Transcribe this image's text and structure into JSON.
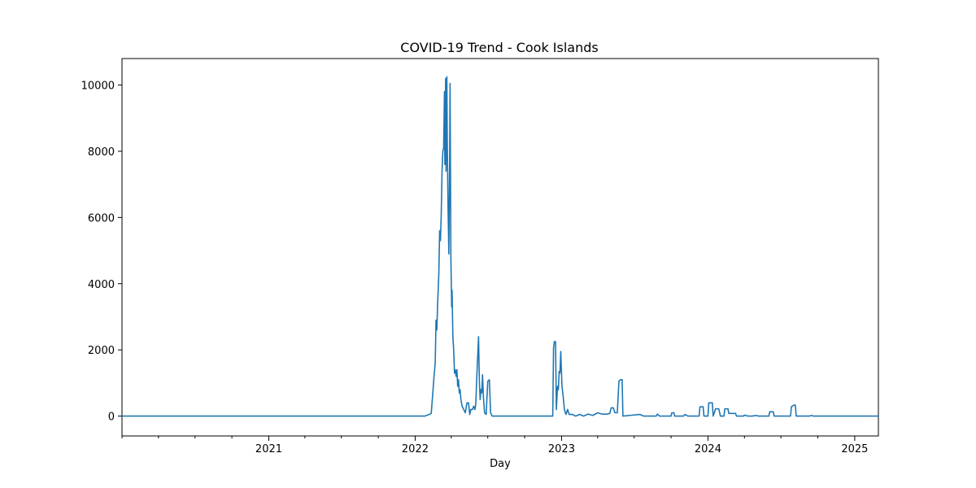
{
  "chart_data": {
    "type": "line",
    "title": "COVID-19 Trend - Cook Islands",
    "xlabel": "Day",
    "ylabel": "",
    "x_range": [
      "2020-01-01",
      "2025-03-01"
    ],
    "ylim": [
      -600,
      10800
    ],
    "grid": false,
    "legend": "none",
    "colors": {
      "series": "#1f77b4",
      "axis": "#000000",
      "background": "#ffffff"
    },
    "x_ticks": [
      {
        "date": "2021-01-01",
        "label": "2021"
      },
      {
        "date": "2022-01-01",
        "label": "2022"
      },
      {
        "date": "2023-01-01",
        "label": "2023"
      },
      {
        "date": "2024-01-01",
        "label": "2024"
      },
      {
        "date": "2025-01-01",
        "label": "2025"
      }
    ],
    "x_minor_ticks": [
      "2020-01-01",
      "2020-04-01",
      "2020-07-01",
      "2020-10-01",
      "2021-04-01",
      "2021-07-01",
      "2021-10-01",
      "2022-04-01",
      "2022-07-01",
      "2022-10-01",
      "2023-04-01",
      "2023-07-01",
      "2023-10-01",
      "2024-04-01",
      "2024-07-01",
      "2024-10-01"
    ],
    "y_ticks": [
      0,
      2000,
      4000,
      6000,
      8000,
      10000
    ],
    "series": [
      {
        "values": [
          [
            "2020-01-01",
            0
          ],
          [
            "2022-01-25",
            0
          ],
          [
            "2022-02-05",
            50
          ],
          [
            "2022-02-10",
            80
          ],
          [
            "2022-02-14",
            700
          ],
          [
            "2022-02-17",
            1200
          ],
          [
            "2022-02-20",
            1600
          ],
          [
            "2022-02-22",
            2900
          ],
          [
            "2022-02-24",
            2600
          ],
          [
            "2022-02-26",
            3400
          ],
          [
            "2022-03-01",
            4300
          ],
          [
            "2022-03-03",
            5600
          ],
          [
            "2022-03-05",
            5300
          ],
          [
            "2022-03-07",
            6100
          ],
          [
            "2022-03-09",
            7400
          ],
          [
            "2022-03-11",
            8000
          ],
          [
            "2022-03-13",
            8100
          ],
          [
            "2022-03-15",
            9800
          ],
          [
            "2022-03-16",
            7600
          ],
          [
            "2022-03-18",
            10200
          ],
          [
            "2022-03-19",
            7400
          ],
          [
            "2022-03-21",
            10250
          ],
          [
            "2022-03-22",
            8300
          ],
          [
            "2022-03-24",
            6300
          ],
          [
            "2022-03-26",
            4900
          ],
          [
            "2022-03-28",
            7800
          ],
          [
            "2022-03-29",
            10050
          ],
          [
            "2022-03-31",
            4800
          ],
          [
            "2022-04-02",
            3300
          ],
          [
            "2022-04-03",
            3800
          ],
          [
            "2022-04-05",
            2400
          ],
          [
            "2022-04-07",
            2000
          ],
          [
            "2022-04-09",
            1300
          ],
          [
            "2022-04-11",
            1400
          ],
          [
            "2022-04-13",
            1200
          ],
          [
            "2022-04-15",
            1400
          ],
          [
            "2022-04-17",
            900
          ],
          [
            "2022-04-19",
            1100
          ],
          [
            "2022-04-21",
            700
          ],
          [
            "2022-04-23",
            800
          ],
          [
            "2022-04-25",
            500
          ],
          [
            "2022-04-28",
            300
          ],
          [
            "2022-05-02",
            200
          ],
          [
            "2022-05-06",
            100
          ],
          [
            "2022-05-10",
            400
          ],
          [
            "2022-05-14",
            400
          ],
          [
            "2022-05-17",
            50
          ],
          [
            "2022-05-20",
            200
          ],
          [
            "2022-05-24",
            200
          ],
          [
            "2022-05-27",
            300
          ],
          [
            "2022-05-30",
            200
          ],
          [
            "2022-06-01",
            350
          ],
          [
            "2022-06-04",
            1300
          ],
          [
            "2022-06-06",
            1850
          ],
          [
            "2022-06-08",
            2400
          ],
          [
            "2022-06-10",
            1100
          ],
          [
            "2022-06-12",
            500
          ],
          [
            "2022-06-14",
            800
          ],
          [
            "2022-06-16",
            700
          ],
          [
            "2022-06-18",
            1250
          ],
          [
            "2022-06-20",
            600
          ],
          [
            "2022-06-23",
            100
          ],
          [
            "2022-06-27",
            50
          ],
          [
            "2022-07-01",
            1050
          ],
          [
            "2022-07-05",
            1100
          ],
          [
            "2022-07-08",
            100
          ],
          [
            "2022-07-12",
            0
          ],
          [
            "2022-12-10",
            0
          ],
          [
            "2022-12-12",
            2050
          ],
          [
            "2022-12-14",
            2250
          ],
          [
            "2022-12-17",
            2250
          ],
          [
            "2022-12-19",
            200
          ],
          [
            "2022-12-22",
            900
          ],
          [
            "2022-12-24",
            800
          ],
          [
            "2022-12-26",
            1350
          ],
          [
            "2022-12-28",
            1300
          ],
          [
            "2022-12-30",
            1950
          ],
          [
            "2023-01-02",
            900
          ],
          [
            "2023-01-05",
            600
          ],
          [
            "2023-01-08",
            200
          ],
          [
            "2023-01-12",
            50
          ],
          [
            "2023-01-16",
            200
          ],
          [
            "2023-01-20",
            50
          ],
          [
            "2023-01-28",
            50
          ],
          [
            "2023-02-05",
            0
          ],
          [
            "2023-02-15",
            50
          ],
          [
            "2023-02-25",
            0
          ],
          [
            "2023-03-08",
            60
          ],
          [
            "2023-03-20",
            20
          ],
          [
            "2023-04-01",
            100
          ],
          [
            "2023-04-12",
            60
          ],
          [
            "2023-04-25",
            60
          ],
          [
            "2023-05-01",
            80
          ],
          [
            "2023-05-05",
            250
          ],
          [
            "2023-05-10",
            250
          ],
          [
            "2023-05-14",
            100
          ],
          [
            "2023-05-20",
            100
          ],
          [
            "2023-05-24",
            1050
          ],
          [
            "2023-05-28",
            1100
          ],
          [
            "2023-06-01",
            1100
          ],
          [
            "2023-06-03",
            0
          ],
          [
            "2023-06-20",
            20
          ],
          [
            "2023-07-15",
            50
          ],
          [
            "2023-07-25",
            0
          ],
          [
            "2023-08-25",
            0
          ],
          [
            "2023-08-28",
            60
          ],
          [
            "2023-09-02",
            0
          ],
          [
            "2023-10-01",
            0
          ],
          [
            "2023-10-03",
            100
          ],
          [
            "2023-10-08",
            100
          ],
          [
            "2023-10-10",
            0
          ],
          [
            "2023-11-01",
            0
          ],
          [
            "2023-11-05",
            50
          ],
          [
            "2023-11-12",
            0
          ],
          [
            "2023-12-10",
            0
          ],
          [
            "2023-12-12",
            280
          ],
          [
            "2023-12-20",
            280
          ],
          [
            "2023-12-22",
            0
          ],
          [
            "2024-01-01",
            0
          ],
          [
            "2024-01-03",
            400
          ],
          [
            "2024-01-12",
            400
          ],
          [
            "2024-01-14",
            0
          ],
          [
            "2024-01-20",
            220
          ],
          [
            "2024-01-28",
            220
          ],
          [
            "2024-02-01",
            0
          ],
          [
            "2024-02-10",
            0
          ],
          [
            "2024-02-12",
            220
          ],
          [
            "2024-02-20",
            220
          ],
          [
            "2024-02-22",
            80
          ],
          [
            "2024-03-01",
            80
          ],
          [
            "2024-03-10",
            80
          ],
          [
            "2024-03-12",
            0
          ],
          [
            "2024-03-30",
            0
          ],
          [
            "2024-04-01",
            30
          ],
          [
            "2024-04-10",
            0
          ],
          [
            "2024-04-20",
            0
          ],
          [
            "2024-05-01",
            20
          ],
          [
            "2024-05-05",
            0
          ],
          [
            "2024-06-01",
            0
          ],
          [
            "2024-06-03",
            130
          ],
          [
            "2024-06-12",
            130
          ],
          [
            "2024-06-14",
            0
          ],
          [
            "2024-07-25",
            0
          ],
          [
            "2024-07-27",
            280
          ],
          [
            "2024-08-02",
            330
          ],
          [
            "2024-08-06",
            330
          ],
          [
            "2024-08-08",
            0
          ],
          [
            "2024-09-10",
            0
          ],
          [
            "2024-09-15",
            20
          ],
          [
            "2024-09-20",
            0
          ],
          [
            "2025-03-01",
            0
          ]
        ]
      }
    ]
  }
}
